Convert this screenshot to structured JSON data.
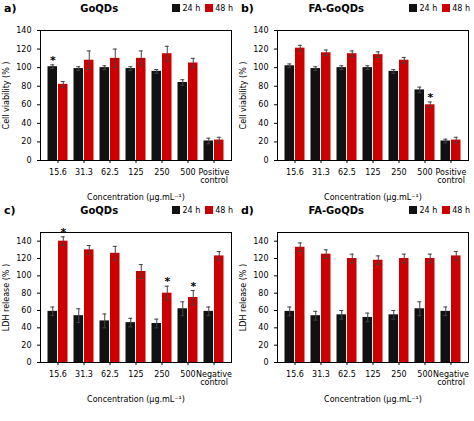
{
  "chart_data": [
    {
      "type": "bar",
      "title": "GoQDs",
      "xlabel": "Concentration (μg.mL⁻¹)",
      "ylabel": "Cell viability (% )",
      "categories": [
        "15.6",
        "31.3",
        "62.5",
        "125",
        "250",
        "500",
        "Positive\ncontrol"
      ],
      "series": [
        {
          "name": "24 h",
          "color": "#111111",
          "values": [
            101,
            99,
            100,
            99,
            96,
            84,
            21
          ],
          "errors": [
            2,
            2,
            2,
            2,
            2,
            3,
            3
          ]
        },
        {
          "name": "48 h",
          "color": "#cc0000",
          "values": [
            82,
            108,
            110,
            110,
            115,
            105,
            22
          ],
          "errors": [
            3,
            10,
            10,
            8,
            8,
            5,
            3
          ]
        }
      ],
      "ylim": [
        0,
        140
      ],
      "yticks": [
        0,
        20,
        40,
        60,
        80,
        100,
        120,
        140
      ],
      "legend": "upper right",
      "annotations": [
        {
          "text": "a)"
        },
        {
          "text": "*",
          "category": "15.6",
          "series": "24 h"
        }
      ]
    },
    {
      "type": "bar",
      "title": "FA-GoQDs",
      "xlabel": "Concentration (μg.mL⁻¹)",
      "ylabel": "Cell viability (% )",
      "categories": [
        "15.6",
        "31.3",
        "62.5",
        "125",
        "250",
        "500",
        "Positive\ncontrol"
      ],
      "series": [
        {
          "name": "24 h",
          "color": "#111111",
          "values": [
            102,
            99,
            100,
            100,
            96,
            76,
            21
          ],
          "errors": [
            2,
            2,
            2,
            2,
            2,
            3,
            2
          ]
        },
        {
          "name": "48 h",
          "color": "#cc0000",
          "values": [
            121,
            116,
            115,
            114,
            108,
            60,
            22
          ],
          "errors": [
            3,
            3,
            3,
            3,
            3,
            3,
            3
          ]
        }
      ],
      "ylim": [
        0,
        140
      ],
      "yticks": [
        0,
        20,
        40,
        60,
        80,
        100,
        120,
        140
      ],
      "legend": "upper right",
      "annotations": [
        {
          "text": "b)"
        },
        {
          "text": "*",
          "category": "500",
          "series": "48 h"
        }
      ]
    },
    {
      "type": "bar",
      "title": "GoQDs",
      "xlabel": "Concentration (μg.mL⁻¹)",
      "ylabel": "LDH release (% )",
      "categories": [
        "15.6",
        "31.3",
        "62.5",
        "125",
        "250",
        "500",
        "Negative\ncontrol"
      ],
      "series": [
        {
          "name": "24 h",
          "color": "#111111",
          "values": [
            59,
            54,
            48,
            46,
            45,
            62,
            59
          ],
          "errors": [
            5,
            8,
            8,
            5,
            5,
            8,
            5
          ]
        },
        {
          "name": "48 h",
          "color": "#cc0000",
          "values": [
            140,
            130,
            126,
            105,
            80,
            75,
            123
          ],
          "errors": [
            5,
            5,
            8,
            8,
            8,
            8,
            5
          ]
        }
      ],
      "ylim": [
        0,
        150
      ],
      "yticks": [
        0,
        20,
        40,
        60,
        80,
        100,
        120,
        140
      ],
      "legend": "upper right",
      "annotations": [
        {
          "text": "c)"
        },
        {
          "text": "*",
          "category": "15.6",
          "series": "48 h"
        },
        {
          "text": "*",
          "category": "250",
          "series": "48 h"
        },
        {
          "text": "*",
          "category": "500",
          "series": "48 h"
        }
      ]
    },
    {
      "type": "bar",
      "title": "FA-GoQDs",
      "xlabel": "Concentration (μg.mL⁻¹)",
      "ylabel": "LDH release (% )",
      "categories": [
        "15.6",
        "31.3",
        "62.5",
        "125",
        "250",
        "500",
        "Negative\ncontrol"
      ],
      "series": [
        {
          "name": "24 h",
          "color": "#111111",
          "values": [
            59,
            54,
            55,
            52,
            55,
            62,
            59
          ],
          "errors": [
            5,
            5,
            5,
            5,
            5,
            8,
            5
          ]
        },
        {
          "name": "48 h",
          "color": "#cc0000",
          "values": [
            133,
            125,
            120,
            118,
            120,
            120,
            123
          ],
          "errors": [
            5,
            5,
            5,
            5,
            5,
            5,
            5
          ]
        }
      ],
      "ylim": [
        0,
        150
      ],
      "yticks": [
        0,
        20,
        40,
        60,
        80,
        100,
        120,
        140
      ],
      "legend": "upper right",
      "annotations": [
        {
          "text": "d)"
        }
      ]
    }
  ]
}
